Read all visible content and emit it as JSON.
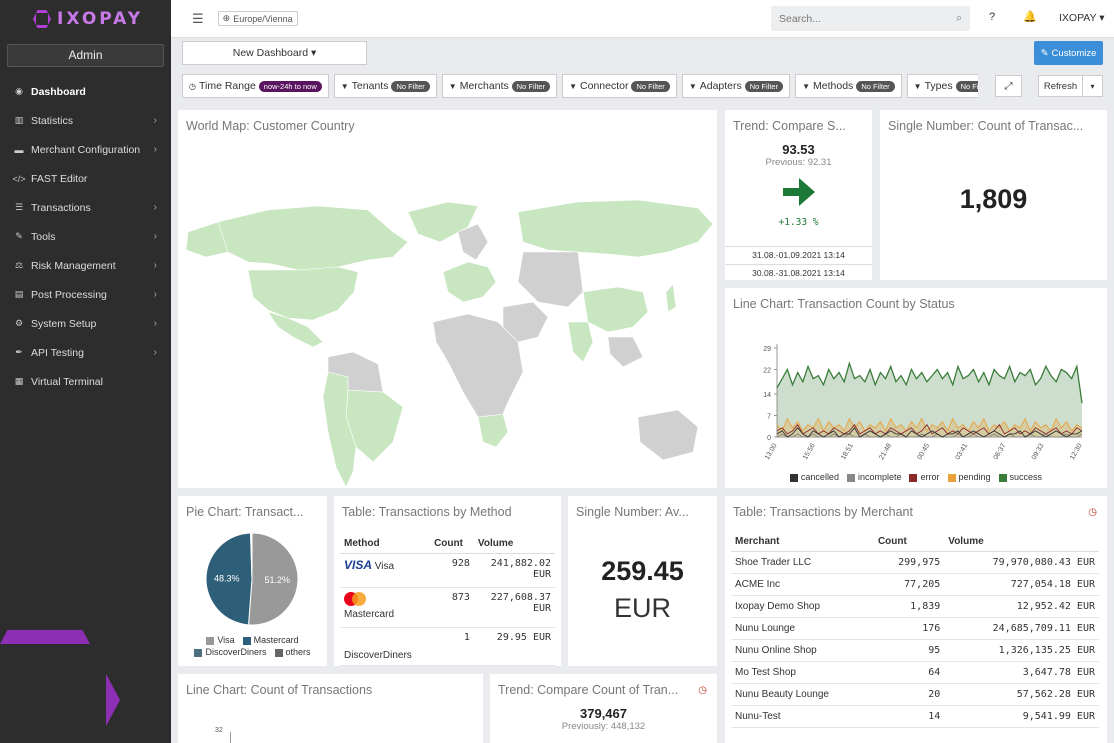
{
  "brand": {
    "name": "IXOPAY"
  },
  "sidebar": {
    "role": "Admin",
    "items": [
      {
        "label": "Dashboard",
        "icon": "dashboard-icon",
        "glyph": "◉",
        "chev": ""
      },
      {
        "label": "Statistics",
        "icon": "bar-chart-icon",
        "glyph": "▥",
        "chev": "›"
      },
      {
        "label": "Merchant Configuration",
        "icon": "briefcase-icon",
        "glyph": "▬",
        "chev": "›"
      },
      {
        "label": "FAST Editor",
        "icon": "code-icon",
        "glyph": "</>",
        "chev": ""
      },
      {
        "label": "Transactions",
        "icon": "list-icon",
        "glyph": "☰",
        "chev": "›"
      },
      {
        "label": "Tools",
        "icon": "wrench-icon",
        "glyph": "✎",
        "chev": "›"
      },
      {
        "label": "Risk Management",
        "icon": "scale-icon",
        "glyph": "⚖",
        "chev": "›"
      },
      {
        "label": "Post Processing",
        "icon": "database-icon",
        "glyph": "▤",
        "chev": "›"
      },
      {
        "label": "System Setup",
        "icon": "gear-icon",
        "glyph": "⚙",
        "chev": "›"
      },
      {
        "label": "API Testing",
        "icon": "syringe-icon",
        "glyph": "✒",
        "chev": "›"
      },
      {
        "label": "Virtual Terminal",
        "icon": "calculator-icon",
        "glyph": "▦",
        "chev": ""
      }
    ]
  },
  "topbar": {
    "timezone": "Europe/Vienna",
    "search_placeholder": "Search...",
    "user": "IXOPAY"
  },
  "dashboard": {
    "selector": "New Dashboard",
    "customize": "Customize",
    "refresh": "Refresh"
  },
  "filters": [
    {
      "label": "Time Range",
      "badge": "now-24h to now",
      "icon": "clock-icon"
    },
    {
      "label": "Tenants",
      "badge": "No Filter",
      "icon": "filter-icon"
    },
    {
      "label": "Merchants",
      "badge": "No Filter",
      "icon": "filter-icon"
    },
    {
      "label": "Connector",
      "badge": "No Filter",
      "icon": "filter-icon"
    },
    {
      "label": "Adapters",
      "badge": "No Filter",
      "icon": "filter-icon"
    },
    {
      "label": "Methods",
      "badge": "No Filter",
      "icon": "filter-icon"
    },
    {
      "label": "Types",
      "badge": "No Filter",
      "icon": "filter-icon"
    }
  ],
  "panels": {
    "world_map": {
      "title": "World Map: Customer Country"
    },
    "trend1": {
      "title": "Trend: Compare S...",
      "value": "93.53",
      "previous": "Previous: 92.31",
      "change": "+1.33 %",
      "range1": "31.08.-01.09.2021 13:14",
      "range2": "30.08.-31.08.2021 13:14"
    },
    "single1": {
      "title": "Single Number: Count of Transac...",
      "value": "1,809"
    },
    "line_status": {
      "title": "Line Chart: Transaction Count by Status"
    },
    "pie": {
      "title": "Pie Chart: Transact..."
    },
    "method_table": {
      "title": "Table: Transactions by Method",
      "headers": [
        "Method",
        "Count",
        "Volume"
      ],
      "rows": [
        {
          "method": "Visa",
          "count": "928",
          "volume": "241,882.02",
          "currency": "EUR"
        },
        {
          "method": "Mastercard",
          "count": "873",
          "volume": "227,608.37",
          "currency": "EUR"
        },
        {
          "method": "DiscoverDiners",
          "count": "1",
          "volume": "29.95",
          "currency": "EUR"
        }
      ]
    },
    "single2": {
      "title": "Single Number: Av...",
      "value": "259.45",
      "unit": "EUR"
    },
    "merchant_table": {
      "title": "Table: Transactions by Merchant",
      "headers": [
        "Merchant",
        "Count",
        "Volume"
      ],
      "rows": [
        [
          "Shoe Trader LLC",
          "299,975",
          "79,970,080.43 EUR"
        ],
        [
          "ACME Inc",
          "77,205",
          "727,054.18 EUR"
        ],
        [
          "Ixopay Demo Shop",
          "1,839",
          "12,952.42 EUR"
        ],
        [
          "Nunu Lounge",
          "176",
          "24,685,709.11 EUR"
        ],
        [
          "Nunu Online Shop",
          "95",
          "1,326,135.25 EUR"
        ],
        [
          "Mo Test Shop",
          "64",
          "3,647.78 EUR"
        ],
        [
          "Nunu Beauty Lounge",
          "20",
          "57,562.28 EUR"
        ],
        [
          "Nunu-Test",
          "14",
          "9,541.99 EUR"
        ]
      ]
    },
    "line_count": {
      "title": "Line Chart: Count of Transactions",
      "ytick": "32"
    },
    "trend2": {
      "title": "Trend: Compare Count of Tran...",
      "value": "379,467",
      "previous": "Previously: 448,132"
    }
  },
  "chart_data": [
    {
      "type": "pie",
      "title": "Pie Chart: Transact...",
      "labels": [
        "Visa",
        "Mastercard",
        "DiscoverDiners",
        "others"
      ],
      "values": [
        51.2,
        48.3,
        0.3,
        0.2
      ],
      "display_labels": [
        "51.2%",
        "48.3%"
      ],
      "colors": [
        "#999999",
        "#2e5f78",
        "#4a6f80",
        "#666666"
      ]
    },
    {
      "type": "area",
      "title": "Line Chart: Transaction Count by Status",
      "yticks": [
        0,
        7,
        14,
        22,
        29
      ],
      "ylim": [
        0,
        29
      ],
      "xticks": [
        "13:00",
        "15:56",
        "18:51",
        "21:48",
        "00:45",
        "03:41",
        "06:37",
        "09:33",
        "12:30"
      ],
      "series": [
        {
          "name": "cancelled",
          "color": "#333333",
          "values": [
            1,
            2,
            0,
            1,
            3,
            1,
            0,
            2,
            1,
            0,
            1,
            2,
            0,
            1,
            1,
            3,
            0,
            1,
            2,
            1,
            0,
            1,
            2,
            1,
            1,
            0,
            2,
            1,
            0,
            1,
            2,
            1,
            0,
            1,
            1,
            2,
            0,
            1,
            2,
            1,
            0,
            1,
            2,
            1,
            0,
            1,
            1,
            2,
            0,
            1,
            2,
            1,
            0,
            1,
            2,
            1,
            0,
            1,
            1,
            2
          ]
        },
        {
          "name": "incomplete",
          "color": "#888888",
          "values": [
            0,
            1,
            0,
            0,
            1,
            0,
            0,
            1,
            0,
            0,
            0,
            1,
            0,
            0,
            1,
            0,
            0,
            1,
            0,
            0,
            0,
            1,
            0,
            0,
            1,
            0,
            0,
            0,
            1,
            0,
            0,
            1,
            0,
            0,
            0,
            1,
            0,
            0,
            1,
            0,
            0,
            0,
            1,
            0,
            0,
            1,
            0,
            0,
            0,
            1,
            0,
            0,
            1,
            0,
            0,
            0,
            1,
            0,
            0,
            1
          ]
        },
        {
          "name": "error",
          "color": "#8b2a2a",
          "values": [
            2,
            3,
            1,
            2,
            4,
            1,
            2,
            3,
            1,
            2,
            1,
            3,
            2,
            1,
            2,
            4,
            1,
            2,
            3,
            1,
            2,
            1,
            3,
            2,
            1,
            2,
            3,
            1,
            2,
            4,
            1,
            2,
            3,
            1,
            2,
            1,
            3,
            2,
            1,
            2,
            3,
            1,
            2,
            4,
            1,
            2,
            3,
            1,
            2,
            1,
            3,
            2,
            1,
            2,
            3,
            1,
            2,
            1,
            3,
            2
          ]
        },
        {
          "name": "pending",
          "color": "#e8a23a",
          "values": [
            4,
            2,
            6,
            3,
            5,
            2,
            4,
            3,
            6,
            2,
            5,
            3,
            4,
            2,
            6,
            3,
            5,
            2,
            4,
            3,
            5,
            2,
            6,
            3,
            4,
            2,
            5,
            3,
            6,
            2,
            4,
            3,
            5,
            2,
            6,
            3,
            4,
            2,
            5,
            3,
            6,
            2,
            4,
            3,
            5,
            2,
            4,
            3,
            6,
            2,
            5,
            3,
            4,
            2,
            6,
            3,
            5,
            2,
            4,
            3
          ]
        },
        {
          "name": "success",
          "color": "#3a7d3a",
          "values": [
            16,
            19,
            22,
            17,
            21,
            18,
            23,
            19,
            20,
            17,
            22,
            19,
            21,
            18,
            24,
            19,
            20,
            18,
            22,
            17,
            21,
            19,
            23,
            18,
            20,
            17,
            22,
            19,
            21,
            18,
            20,
            22,
            19,
            21,
            17,
            23,
            19,
            20,
            22,
            18,
            21,
            17,
            22,
            20,
            19,
            23,
            18,
            21,
            20,
            22,
            17,
            19,
            23,
            20,
            18,
            22,
            21,
            19,
            23,
            11
          ]
        }
      ]
    }
  ]
}
